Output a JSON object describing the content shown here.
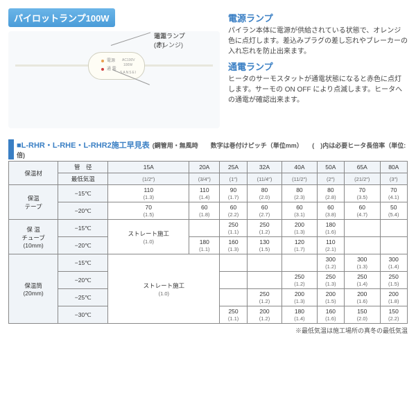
{
  "product_title": "パイロットランプ100W",
  "diagram": {
    "callout1": "電源ランプ",
    "callout1_sub": "(オレンジ)",
    "callout2": "通電ランプ",
    "callout2_sub": "(赤)",
    "dev_line1": "電源",
    "dev_line2": "通 電",
    "dev_line3": "AC100V",
    "dev_line4": "100W",
    "dev_brand": "SANSEI"
  },
  "lamp1": {
    "title": "電源ランプ",
    "body": "パイラン本体に電源が供給されている状態で、オレンジ色に点灯します。差込みプラグの差し忘れやブレーカーの入れ忘れを防止出来ます。"
  },
  "lamp2": {
    "title": "通電ランプ",
    "body": "ヒータのサーモスタットが通電状態になると赤色に点灯します。サーモの ON OFF により点滅します。ヒータへの通電が確認出来ます。"
  },
  "table": {
    "title": "■L-RHR・L-RHE・L-RHR2施工早見表",
    "sub": "(鋼管用・無風時　　数字は巻付けピッチ（単位mm）　　(　)内は必要ヒータ長倍率（単位:倍)",
    "header_insul": "保温材",
    "header_pipe": "管　径",
    "header_temp": "最低気温",
    "cols": [
      {
        "a": "15A",
        "b": "(1/2″)"
      },
      {
        "a": "20A",
        "b": "(3/4″)"
      },
      {
        "a": "25A",
        "b": "(1″)"
      },
      {
        "a": "32A",
        "b": "(11/4″)"
      },
      {
        "a": "40A",
        "b": "(11/2″)"
      },
      {
        "a": "50A",
        "b": "(2″)"
      },
      {
        "a": "65A",
        "b": "(21/2″)"
      },
      {
        "a": "80A",
        "b": "(3″)"
      }
    ],
    "group1": {
      "name": "保温\nテープ",
      "rows": [
        {
          "t": "−15℃",
          "v": [
            [
              "110",
              "(1.3)"
            ],
            [
              "110",
              "(1.4)"
            ],
            [
              "90",
              "(1.7)"
            ],
            [
              "80",
              "(2.0)"
            ],
            [
              "80",
              "(2.3)"
            ],
            [
              "80",
              "(2.8)"
            ],
            [
              "70",
              "(3.5)"
            ],
            [
              "70",
              "(4.1)"
            ]
          ]
        },
        {
          "t": "−20℃",
          "v": [
            [
              "70",
              "(1.5)"
            ],
            [
              "60",
              "(1.8)"
            ],
            [
              "60",
              "(2.2)"
            ],
            [
              "60",
              "(2.7)"
            ],
            [
              "60",
              "(3.1)"
            ],
            [
              "60",
              "(3.8)"
            ],
            [
              "60",
              "(4.7)"
            ],
            [
              "50",
              "(5.4)"
            ]
          ]
        }
      ]
    },
    "group2": {
      "name": "保 温\nチューブ\n(10mm)",
      "rows": [
        {
          "t": "−15℃",
          "span": "ストレート施工",
          "spanmult": "(1.0)",
          "v": [
            null,
            null,
            [
              "250",
              "(1.1)"
            ],
            [
              "250",
              "(1.2)"
            ],
            [
              "200",
              "(1.3)"
            ],
            [
              "180",
              "(1.6)"
            ],
            null,
            null
          ]
        },
        {
          "t": "−20℃",
          "v": [
            null,
            [
              "180",
              "(1.1)"
            ],
            [
              "160",
              "(1.3)"
            ],
            [
              "130",
              "(1.5)"
            ],
            [
              "120",
              "(1.7)"
            ],
            [
              "110",
              "(2.1)"
            ],
            null,
            null
          ]
        }
      ]
    },
    "group3": {
      "name": "保温筒\n(20mm)",
      "rows": [
        {
          "t": "−15℃",
          "span": "ストレート施工",
          "spanmult": "(1.0)",
          "v": [
            null,
            null,
            null,
            null,
            null,
            [
              "300",
              "(1.2)"
            ],
            [
              "300",
              "(1.3)"
            ],
            [
              "300",
              "(1.4)"
            ]
          ]
        },
        {
          "t": "−20℃",
          "v": [
            null,
            null,
            null,
            null,
            [
              "250",
              "(1.2)"
            ],
            [
              "250",
              "(1.3)"
            ],
            [
              "250",
              "(1.4)"
            ],
            [
              "250",
              "(1.5)"
            ]
          ]
        },
        {
          "t": "−25℃",
          "v": [
            null,
            null,
            null,
            [
              "250",
              "(1.2)"
            ],
            [
              "200",
              "(1.3)"
            ],
            [
              "200",
              "(1.5)"
            ],
            [
              "200",
              "(1.6)"
            ],
            [
              "200",
              "(1.8)"
            ]
          ]
        },
        {
          "t": "−30℃",
          "v": [
            null,
            null,
            [
              "250",
              "(1.1)"
            ],
            [
              "200",
              "(1.2)"
            ],
            [
              "180",
              "(1.4)"
            ],
            [
              "160",
              "(1.6)"
            ],
            [
              "150",
              "(2.0)"
            ],
            [
              "150",
              "(2.2)"
            ]
          ]
        }
      ]
    },
    "note": "※最低気温は施工場所の真冬の最低気温"
  }
}
